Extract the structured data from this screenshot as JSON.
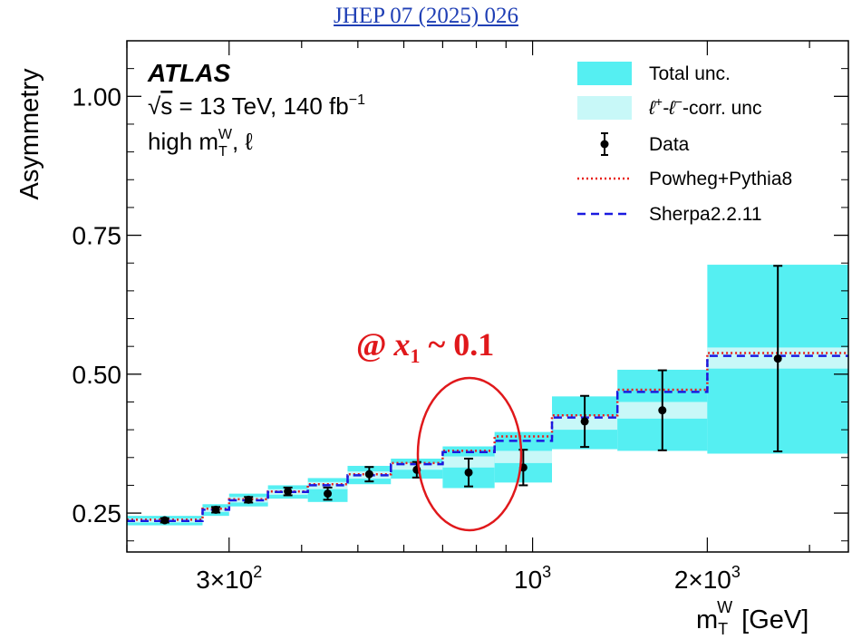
{
  "header": {
    "reference": "JHEP 07 (2025) 026"
  },
  "chart_data": {
    "type": "step",
    "ylabel": "Asymmetry",
    "xlabel": "m",
    "xlabel_sup": "W",
    "xlabel_sub": "T",
    "xlabel_unit": "[GeV]",
    "xscale": "log",
    "xlim": [
      200,
      3500
    ],
    "ylim": [
      0.18,
      1.1
    ],
    "yticks": [
      {
        "value": 0.25,
        "label": "0.25"
      },
      {
        "value": 0.5,
        "label": "0.50"
      },
      {
        "value": 0.75,
        "label": "0.75"
      },
      {
        "value": 1.0,
        "label": "1.00"
      }
    ],
    "xticks": [
      {
        "value": 300,
        "mantissa": "3×10",
        "exp": "2"
      },
      {
        "value": 1000,
        "mantissa": "10",
        "exp": "3"
      },
      {
        "value": 2000,
        "mantissa": "2×10",
        "exp": "3"
      }
    ],
    "annotations": {
      "experiment": "ATLAS",
      "energy_prefix": "s",
      "energy_rest": " = 13 TeV, 140 fb",
      "energy_sup": "−1",
      "selection_prefix": "high m",
      "selection_sup": "W",
      "selection_sub": "T",
      "selection_rest": ", ℓ",
      "highlight_prefix": "@",
      "highlight_var": "x",
      "highlight_sub": "1",
      "highlight_rest": " ~ 0.1"
    },
    "legend": {
      "placement": "top-right",
      "total_unc": "Total unc.",
      "corr_unc_a": "ℓ",
      "corr_unc_a_sup": "+",
      "corr_unc_b": "-ℓ",
      "corr_unc_b_sup": "−",
      "corr_unc_c": "-corr. unc",
      "data": "Data",
      "powheg": "Powheg+Pythia8",
      "sherpa": "Sherpa2.2.11"
    },
    "colors": {
      "total_unc": "#55eff2",
      "corr_unc": "#c8f8f8",
      "data": "#000000",
      "powheg": "#e8201a",
      "sherpa": "#1a1ae0",
      "highlight": "#e0181b"
    },
    "bins": [
      {
        "lo": 200,
        "hi": 270,
        "data": 0.237,
        "err": 0.004,
        "tot_lo": 0.228,
        "tot_hi": 0.245,
        "corr_lo": 0.233,
        "corr_hi": 0.24,
        "powheg": 0.238,
        "sherpa": 0.236
      },
      {
        "lo": 270,
        "hi": 300,
        "data": 0.256,
        "err": 0.005,
        "tot_lo": 0.245,
        "tot_hi": 0.266,
        "corr_lo": 0.252,
        "corr_hi": 0.26,
        "powheg": 0.258,
        "sherpa": 0.256
      },
      {
        "lo": 300,
        "hi": 350,
        "data": 0.274,
        "err": 0.005,
        "tot_lo": 0.262,
        "tot_hi": 0.285,
        "corr_lo": 0.269,
        "corr_hi": 0.279,
        "powheg": 0.275,
        "sherpa": 0.273
      },
      {
        "lo": 350,
        "hi": 410,
        "data": 0.289,
        "err": 0.007,
        "tot_lo": 0.276,
        "tot_hi": 0.3,
        "corr_lo": 0.283,
        "corr_hi": 0.293,
        "powheg": 0.289,
        "sherpa": 0.288
      },
      {
        "lo": 410,
        "hi": 480,
        "data": 0.285,
        "err": 0.011,
        "tot_lo": 0.27,
        "tot_hi": 0.313,
        "corr_lo": 0.293,
        "corr_hi": 0.306,
        "powheg": 0.302,
        "sherpa": 0.3
      },
      {
        "lo": 480,
        "hi": 570,
        "data": 0.32,
        "err": 0.013,
        "tot_lo": 0.302,
        "tot_hi": 0.335,
        "corr_lo": 0.312,
        "corr_hi": 0.325,
        "powheg": 0.32,
        "sherpa": 0.318
      },
      {
        "lo": 570,
        "hi": 700,
        "data": 0.328,
        "err": 0.014,
        "tot_lo": 0.312,
        "tot_hi": 0.348,
        "corr_lo": 0.328,
        "corr_hi": 0.34,
        "powheg": 0.34,
        "sherpa": 0.338
      },
      {
        "lo": 700,
        "hi": 860,
        "data": 0.323,
        "err": 0.025,
        "tot_lo": 0.295,
        "tot_hi": 0.37,
        "corr_lo": 0.332,
        "corr_hi": 0.352,
        "powheg": 0.362,
        "sherpa": 0.36
      },
      {
        "lo": 860,
        "hi": 1080,
        "data": 0.332,
        "err": 0.032,
        "tot_lo": 0.305,
        "tot_hi": 0.396,
        "corr_lo": 0.34,
        "corr_hi": 0.362,
        "powheg": 0.388,
        "sherpa": 0.38
      },
      {
        "lo": 1080,
        "hi": 1400,
        "data": 0.415,
        "err": 0.046,
        "tot_lo": 0.365,
        "tot_hi": 0.46,
        "corr_lo": 0.4,
        "corr_hi": 0.425,
        "powheg": 0.426,
        "sherpa": 0.422
      },
      {
        "lo": 1400,
        "hi": 2000,
        "data": 0.435,
        "err": 0.072,
        "tot_lo": 0.362,
        "tot_hi": 0.508,
        "corr_lo": 0.42,
        "corr_hi": 0.45,
        "powheg": 0.472,
        "sherpa": 0.468
      },
      {
        "lo": 2000,
        "hi": 3500,
        "data": 0.528,
        "err": 0.167,
        "tot_lo": 0.357,
        "tot_hi": 0.697,
        "corr_lo": 0.51,
        "corr_hi": 0.548,
        "powheg": 0.538,
        "sherpa": 0.533
      }
    ]
  }
}
